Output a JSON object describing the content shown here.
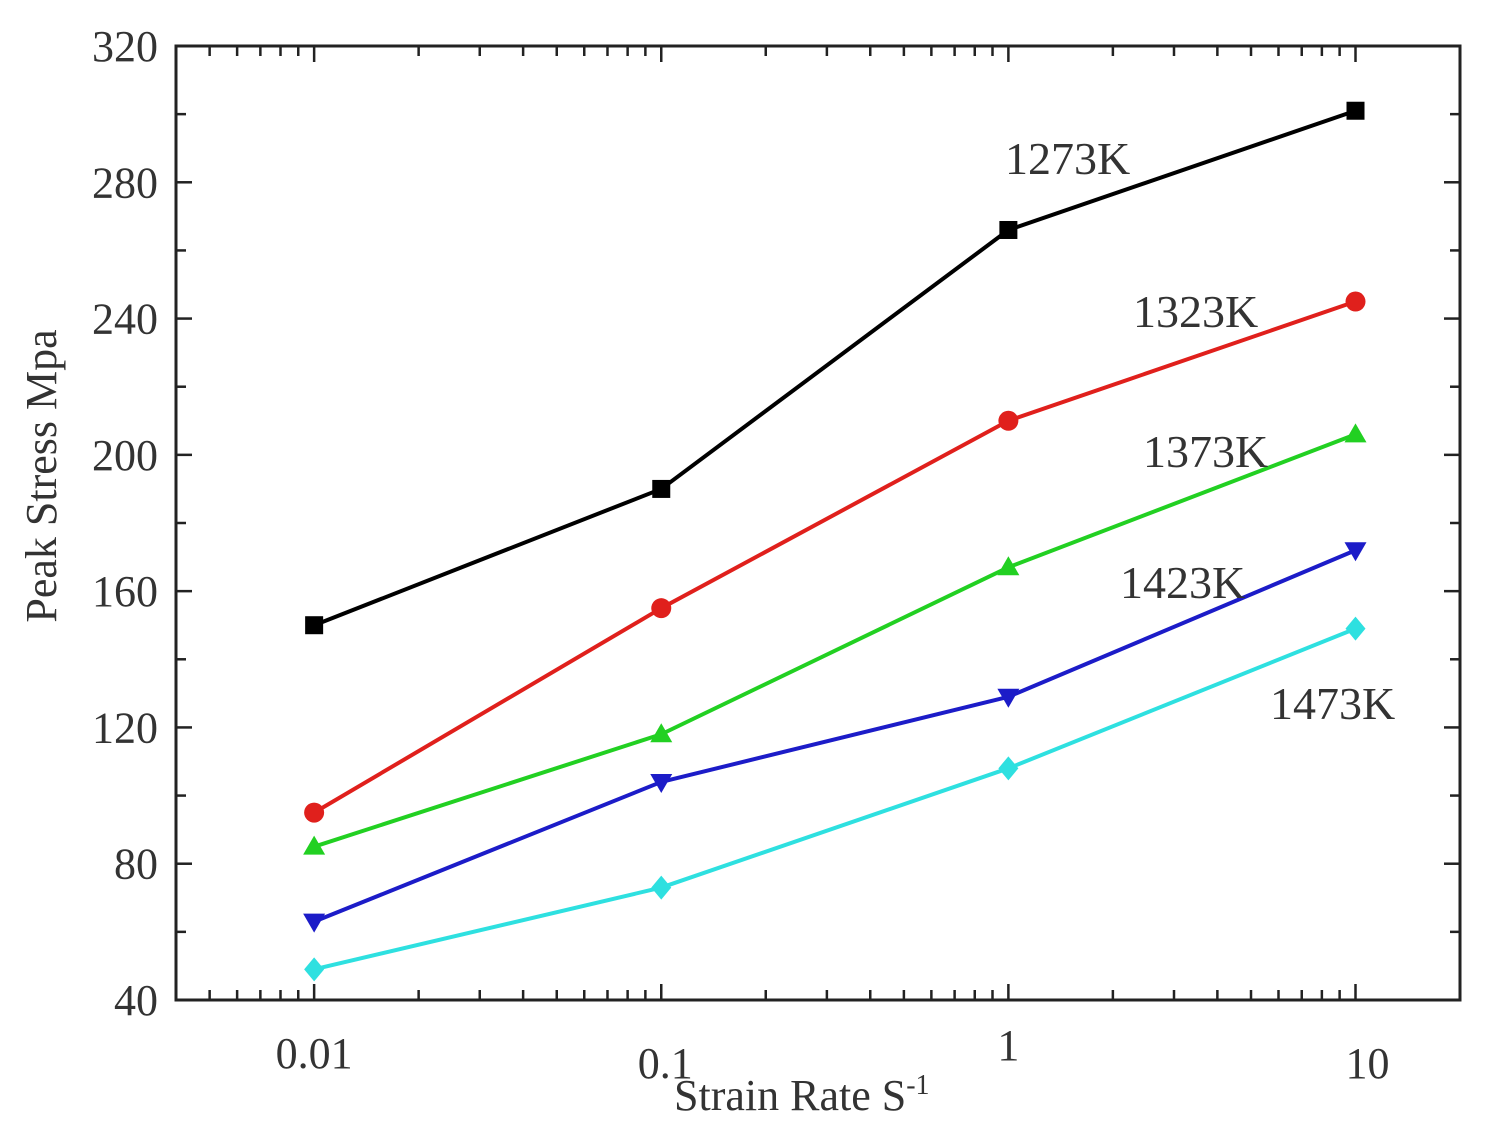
{
  "chart_data": {
    "type": "line",
    "title": "",
    "xlabel": "Strain Rate  S",
    "xlabel_superscript": "-1",
    "ylabel": "Peak Stress Mpa",
    "xscale": "log",
    "x": [
      0.01,
      0.1,
      1,
      10
    ],
    "xticklabels": [
      "0.01",
      "0.1",
      "1",
      "10"
    ],
    "xlim": [
      0.004,
      20
    ],
    "ylim": [
      40,
      320
    ],
    "yticks": [
      40,
      80,
      120,
      160,
      200,
      240,
      280,
      320
    ],
    "yticklabels": [
      "40",
      "80",
      "120",
      "160",
      "200",
      "240",
      "280",
      "320"
    ],
    "grid": false,
    "series": [
      {
        "name": "1273K",
        "label": "1273K",
        "color": "#000000",
        "marker": "square",
        "values": [
          150,
          190,
          266,
          301
        ]
      },
      {
        "name": "1323K",
        "label": "1323K",
        "color": "#e0201c",
        "marker": "circle",
        "values": [
          95,
          155,
          210,
          245
        ]
      },
      {
        "name": "1373K",
        "label": "1373K",
        "color": "#22d022",
        "marker": "triangle-up",
        "values": [
          85,
          118,
          167,
          206
        ]
      },
      {
        "name": "1423K",
        "label": "1423K",
        "color": "#1c1cc8",
        "marker": "triangle-down",
        "values": [
          63,
          104,
          129,
          172
        ]
      },
      {
        "name": "1473K",
        "label": "1473K",
        "color": "#2ee0e0",
        "marker": "diamond",
        "values": [
          49,
          73,
          108,
          149
        ]
      }
    ]
  }
}
